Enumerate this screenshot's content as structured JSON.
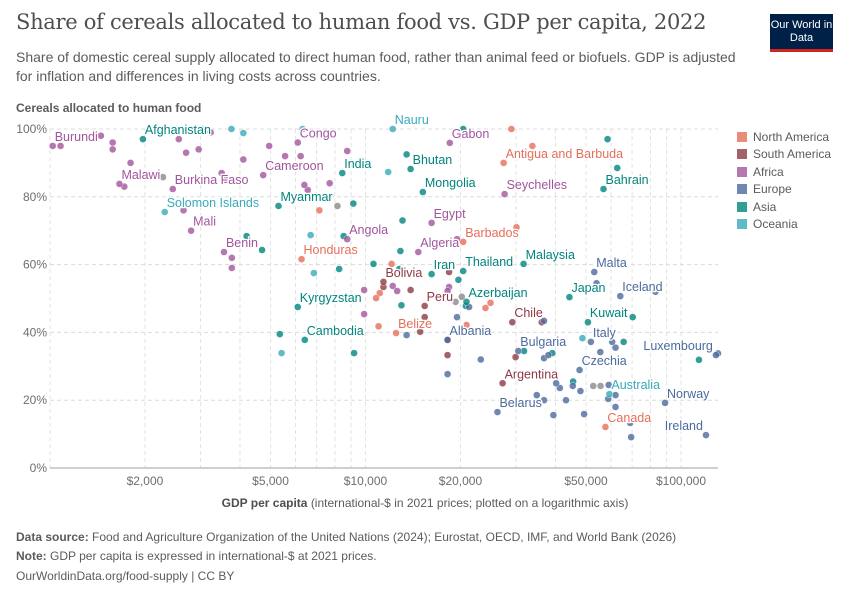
{
  "header": {
    "title": "Share of cereals allocated to human food vs. GDP per capita, 2022",
    "subtitle": "Share of domestic cereal supply allocated to direct human food, rather than animal feed or biofuels. GDP is adjusted for inflation and differences in living costs across countries.",
    "logo_text": "Our World in Data"
  },
  "footer": {
    "source_label": "Data source:",
    "source_text": "Food and Agriculture Organization of the United Nations (2024); Eurostat, OECD, IMF, and World Bank (2026)",
    "note_label": "Note:",
    "note_text": "GDP per capita is expressed in international-$ at 2021 prices.",
    "url_license": "OurWorldinData.org/food-supply | CC BY"
  },
  "chart_data": {
    "type": "scatter",
    "title": "Share of cereals allocated to human food vs. GDP per capita, 2022",
    "ylabel": "Cereals allocated to human food",
    "xlabel_bold": "GDP per capita",
    "xlabel_rest": "(international-$ in 2021 prices; plotted on a logarithmic axis)",
    "x_scale": "log",
    "xlim": [
      1000,
      131000
    ],
    "ylim": [
      0,
      100
    ],
    "x_ticks": [
      {
        "v": 2000,
        "label": "$2,000"
      },
      {
        "v": 5000,
        "label": "$5,000"
      },
      {
        "v": 10000,
        "label": "$10,000"
      },
      {
        "v": 20000,
        "label": "$20,000"
      },
      {
        "v": 50000,
        "label": "$50,000"
      },
      {
        "v": 100000,
        "label": "$100,000"
      }
    ],
    "y_ticks": [
      {
        "v": 0,
        "label": "0%"
      },
      {
        "v": 20,
        "label": "20%"
      },
      {
        "v": 40,
        "label": "40%"
      },
      {
        "v": 60,
        "label": "60%"
      },
      {
        "v": 80,
        "label": "80%"
      },
      {
        "v": 100,
        "label": "100%"
      }
    ],
    "grid": true,
    "legend_position": "right",
    "regions": [
      {
        "name": "North America",
        "color": "#E56E5A"
      },
      {
        "name": "South America",
        "color": "#8C3A44"
      },
      {
        "name": "Africa",
        "color": "#A2559C"
      },
      {
        "name": "Europe",
        "color": "#4C6A9C"
      },
      {
        "name": "Asia",
        "color": "#00847E"
      },
      {
        "name": "Oceania",
        "color": "#38AABA"
      }
    ],
    "no_region_color": "#8a8a8a",
    "points": [
      {
        "label": "Burundi",
        "region": "Africa",
        "x": 1020,
        "y": 95
      },
      {
        "label": "Afghanistan",
        "region": "Asia",
        "x": 1970,
        "y": 97
      },
      {
        "label": "Malawi",
        "region": "Africa",
        "x": 1660,
        "y": 83.8
      },
      {
        "label": "Burkina Faso",
        "region": "Africa",
        "x": 2450,
        "y": 82.3
      },
      {
        "label": "Solomon Islands",
        "region": "Oceania",
        "x": 2310,
        "y": 75.5
      },
      {
        "label": "Mali",
        "region": "Africa",
        "x": 2800,
        "y": 70
      },
      {
        "label": "Benin",
        "region": "Africa",
        "x": 3560,
        "y": 63.7
      },
      {
        "label": "Congo",
        "region": "Africa",
        "x": 6100,
        "y": 96
      },
      {
        "label": "Cameroon",
        "region": "Africa",
        "x": 4740,
        "y": 86.4
      },
      {
        "label": "Myanmar",
        "region": "Asia",
        "x": 5300,
        "y": 77.3
      },
      {
        "label": "India",
        "region": "Asia",
        "x": 8440,
        "y": 87
      },
      {
        "label": "Angola",
        "region": "Africa",
        "x": 8750,
        "y": 67.5
      },
      {
        "label": "Honduras",
        "region": "North America",
        "x": 6270,
        "y": 61.6
      },
      {
        "label": "Kyrgyzstan",
        "region": "Asia",
        "x": 6100,
        "y": 47.5
      },
      {
        "label": "Cambodia",
        "region": "Asia",
        "x": 6420,
        "y": 37.8
      },
      {
        "label": "Nauru",
        "region": "Oceania",
        "x": 12200,
        "y": 100
      },
      {
        "label": "Gabon",
        "region": "Africa",
        "x": 18500,
        "y": 95.9
      },
      {
        "label": "Antigua and Barbuda",
        "region": "North America",
        "x": 27400,
        "y": 90
      },
      {
        "label": "Bhutan",
        "region": "Asia",
        "x": 13900,
        "y": 88.2
      },
      {
        "label": "Mongolia",
        "region": "Asia",
        "x": 15200,
        "y": 81.4
      },
      {
        "label": "Seychelles",
        "region": "Africa",
        "x": 27600,
        "y": 80.8
      },
      {
        "label": "Bahrain",
        "region": "Asia",
        "x": 56800,
        "y": 82.3
      },
      {
        "label": "Egypt",
        "region": "Africa",
        "x": 16200,
        "y": 72.3
      },
      {
        "label": "Barbados",
        "region": "North America",
        "x": 20400,
        "y": 66.7
      },
      {
        "label": "Algeria",
        "region": "Africa",
        "x": 14700,
        "y": 63.7
      },
      {
        "label": "Malaysia",
        "region": "Asia",
        "x": 31700,
        "y": 60.2
      },
      {
        "label": "Thailand",
        "region": "Asia",
        "x": 20400,
        "y": 58.1
      },
      {
        "label": "Iran",
        "region": "Asia",
        "x": 16200,
        "y": 57.2
      },
      {
        "label": "Malta",
        "region": "Europe",
        "x": 53100,
        "y": 57.8
      },
      {
        "label": "Iceland",
        "region": "Europe",
        "x": 64200,
        "y": 50.7
      },
      {
        "label": "Japan",
        "region": "Asia",
        "x": 44300,
        "y": 50.4
      },
      {
        "label": "Bolivia",
        "region": "South America",
        "x": 11400,
        "y": 54.9
      },
      {
        "label": "Azerbaijan",
        "region": "Asia",
        "x": 20900,
        "y": 49
      },
      {
        "label": "Peru",
        "region": "South America",
        "x": 15400,
        "y": 47.8
      },
      {
        "label": "Chile",
        "region": "South America",
        "x": 29200,
        "y": 43
      },
      {
        "label": "Kuwait",
        "region": "Asia",
        "x": 50700,
        "y": 43
      },
      {
        "label": "Belize",
        "region": "North America",
        "x": 12500,
        "y": 39.8
      },
      {
        "label": "Albania",
        "region": "Europe",
        "x": 18200,
        "y": 37.8
      },
      {
        "label": "Italy",
        "region": "Europe",
        "x": 51800,
        "y": 37.2
      },
      {
        "label": "Bulgaria",
        "region": "Europe",
        "x": 30500,
        "y": 34.5
      },
      {
        "label": "Luxembourg",
        "region": "Europe",
        "x": 129000,
        "y": 33.3
      },
      {
        "label": "Czechia",
        "region": "Europe",
        "x": 47700,
        "y": 28.9
      },
      {
        "label": "Argentina",
        "region": "South America",
        "x": 27200,
        "y": 25
      },
      {
        "label": "Australia",
        "region": "Oceania",
        "x": 59300,
        "y": 21.8
      },
      {
        "label": "Norway",
        "region": "Europe",
        "x": 89000,
        "y": 19.2
      },
      {
        "label": "Belarus",
        "region": "Europe",
        "x": 26200,
        "y": 16.5
      },
      {
        "label": "Canada",
        "region": "North America",
        "x": 57600,
        "y": 12.1
      },
      {
        "label": "Ireland",
        "region": "Europe",
        "x": 120000,
        "y": 9.7
      },
      {
        "label": "",
        "region": "Africa",
        "x": 1080,
        "y": 95
      },
      {
        "label": "",
        "region": "Africa",
        "x": 1450,
        "y": 98
      },
      {
        "label": "",
        "region": "Africa",
        "x": 1580,
        "y": 96
      },
      {
        "label": "",
        "region": "Africa",
        "x": 1580,
        "y": 94
      },
      {
        "label": "",
        "region": "Africa",
        "x": 1800,
        "y": 90
      },
      {
        "label": "",
        "region": "Africa",
        "x": 1720,
        "y": 83
      },
      {
        "label": "",
        "region": "Africa",
        "x": 2700,
        "y": 93
      },
      {
        "label": "",
        "region": "Africa",
        "x": 2960,
        "y": 94
      },
      {
        "label": "",
        "region": "Africa",
        "x": 3230,
        "y": 99
      },
      {
        "label": "",
        "region": "Africa",
        "x": 2560,
        "y": 97
      },
      {
        "label": "",
        "region": "Africa",
        "x": 3500,
        "y": 87
      },
      {
        "label": "",
        "region": "Africa",
        "x": 3600,
        "y": 85
      },
      {
        "label": "",
        "region": "Africa",
        "x": 3770,
        "y": 62
      },
      {
        "label": "",
        "region": "Africa",
        "x": 3770,
        "y": 59
      },
      {
        "label": "",
        "region": "Africa",
        "x": 2650,
        "y": 76
      },
      {
        "label": "",
        "region": "Africa",
        "x": 4100,
        "y": 91
      },
      {
        "label": "",
        "region": "Africa",
        "x": 4950,
        "y": 95
      },
      {
        "label": "",
        "region": "Africa",
        "x": 5560,
        "y": 92
      },
      {
        "label": "",
        "region": "Africa",
        "x": 6230,
        "y": 92
      },
      {
        "label": "",
        "region": "Africa",
        "x": 6560,
        "y": 82
      },
      {
        "label": "",
        "region": "Africa",
        "x": 6400,
        "y": 83.5
      },
      {
        "label": "",
        "region": "Africa",
        "x": 7700,
        "y": 84
      },
      {
        "label": "",
        "region": "Africa",
        "x": 8750,
        "y": 93.5
      },
      {
        "label": "",
        "region": "Africa",
        "x": 12200,
        "y": 53.7
      },
      {
        "label": "",
        "region": "Africa",
        "x": 9900,
        "y": 52.5
      },
      {
        "label": "",
        "region": "Africa",
        "x": 9900,
        "y": 45.4
      },
      {
        "label": "",
        "region": "Africa",
        "x": 18400,
        "y": 53.4
      },
      {
        "label": "",
        "region": "Africa",
        "x": 18200,
        "y": 52.2
      },
      {
        "label": "",
        "region": "Africa",
        "x": 12600,
        "y": 52.2
      },
      {
        "label": "",
        "region": "Africa",
        "x": 19500,
        "y": 67.5
      },
      {
        "label": "",
        "region": "Asia",
        "x": 4700,
        "y": 64.3
      },
      {
        "label": "",
        "region": "Asia",
        "x": 4200,
        "y": 68.4
      },
      {
        "label": "",
        "region": "Asia",
        "x": 8530,
        "y": 68.4
      },
      {
        "label": "",
        "region": "Asia",
        "x": 9150,
        "y": 78
      },
      {
        "label": "",
        "region": "Asia",
        "x": 10600,
        "y": 60.2
      },
      {
        "label": "",
        "region": "Asia",
        "x": 8250,
        "y": 58.7
      },
      {
        "label": "",
        "region": "Asia",
        "x": 13100,
        "y": 73
      },
      {
        "label": "",
        "region": "Asia",
        "x": 12900,
        "y": 64
      },
      {
        "label": "",
        "region": "Asia",
        "x": 12800,
        "y": 58.7
      },
      {
        "label": "",
        "region": "Asia",
        "x": 19700,
        "y": 55.5
      },
      {
        "label": "",
        "region": "Asia",
        "x": 13000,
        "y": 48
      },
      {
        "label": "",
        "region": "Asia",
        "x": 20800,
        "y": 47.8
      },
      {
        "label": "",
        "region": "Asia",
        "x": 9200,
        "y": 33.9
      },
      {
        "label": "",
        "region": "Asia",
        "x": 5350,
        "y": 39.5
      },
      {
        "label": "",
        "region": "Asia",
        "x": 20400,
        "y": 100
      },
      {
        "label": "",
        "region": "Asia",
        "x": 13500,
        "y": 92.5
      },
      {
        "label": "",
        "region": "Asia",
        "x": 58500,
        "y": 97
      },
      {
        "label": "",
        "region": "Asia",
        "x": 62800,
        "y": 88.5
      },
      {
        "label": "",
        "region": "Asia",
        "x": 70300,
        "y": 44.5
      },
      {
        "label": "",
        "region": "Asia",
        "x": 65800,
        "y": 37.2
      },
      {
        "label": "",
        "region": "Asia",
        "x": 114000,
        "y": 31.9
      },
      {
        "label": "",
        "region": "Asia",
        "x": 39100,
        "y": 33.9
      },
      {
        "label": "",
        "region": "Asia",
        "x": 31800,
        "y": 34.5
      },
      {
        "label": "",
        "region": "Asia",
        "x": 45500,
        "y": 25.5
      },
      {
        "label": "",
        "region": "Oceania",
        "x": 3050,
        "y": 100
      },
      {
        "label": "",
        "region": "Oceania",
        "x": 3760,
        "y": 100
      },
      {
        "label": "",
        "region": "Oceania",
        "x": 4100,
        "y": 98.8
      },
      {
        "label": "",
        "region": "Oceania",
        "x": 6320,
        "y": 100
      },
      {
        "label": "",
        "region": "Oceania",
        "x": 6700,
        "y": 68.7
      },
      {
        "label": "",
        "region": "Oceania",
        "x": 6860,
        "y": 57.5
      },
      {
        "label": "",
        "region": "Oceania",
        "x": 5420,
        "y": 33.9
      },
      {
        "label": "",
        "region": "Oceania",
        "x": 11800,
        "y": 87.3
      },
      {
        "label": "",
        "region": "Oceania",
        "x": 48700,
        "y": 38.3
      },
      {
        "label": "",
        "region": "North America",
        "x": 29000,
        "y": 100
      },
      {
        "label": "",
        "region": "North America",
        "x": 33800,
        "y": 95
      },
      {
        "label": "",
        "region": "North America",
        "x": 30100,
        "y": 71
      },
      {
        "label": "",
        "region": "North America",
        "x": 7140,
        "y": 76
      },
      {
        "label": "",
        "region": "North America",
        "x": 11100,
        "y": 51.6
      },
      {
        "label": "",
        "region": "North America",
        "x": 10800,
        "y": 50.1
      },
      {
        "label": "",
        "region": "North America",
        "x": 12100,
        "y": 60.2
      },
      {
        "label": "",
        "region": "North America",
        "x": 11000,
        "y": 41.8
      },
      {
        "label": "",
        "region": "North America",
        "x": 20900,
        "y": 42.2
      },
      {
        "label": "",
        "region": "North America",
        "x": 24000,
        "y": 47.2
      },
      {
        "label": "",
        "region": "North America",
        "x": 24900,
        "y": 48.7
      },
      {
        "label": "",
        "region": "South America",
        "x": 11400,
        "y": 53.4
      },
      {
        "label": "",
        "region": "South America",
        "x": 13900,
        "y": 52.5
      },
      {
        "label": "",
        "region": "South America",
        "x": 18400,
        "y": 57.8
      },
      {
        "label": "",
        "region": "South America",
        "x": 15400,
        "y": 44.5
      },
      {
        "label": "",
        "region": "South America",
        "x": 14900,
        "y": 40.2
      },
      {
        "label": "",
        "region": "South America",
        "x": 18200,
        "y": 33.3
      },
      {
        "label": "",
        "region": "South America",
        "x": 18200,
        "y": 37.7
      },
      {
        "label": "",
        "region": "South America",
        "x": 29900,
        "y": 32.7
      },
      {
        "label": "",
        "region": "South America",
        "x": 36200,
        "y": 43
      },
      {
        "label": "",
        "region": "Europe",
        "x": 58800,
        "y": 20.4
      },
      {
        "label": "",
        "region": "Europe",
        "x": 62000,
        "y": 21.5
      },
      {
        "label": "",
        "region": "Europe",
        "x": 69000,
        "y": 13.3
      },
      {
        "label": "",
        "region": "Europe",
        "x": 69500,
        "y": 9.1
      },
      {
        "label": "",
        "region": "Europe",
        "x": 48000,
        "y": 22.7
      },
      {
        "label": "",
        "region": "Europe",
        "x": 45400,
        "y": 24.2
      },
      {
        "label": "",
        "region": "Europe",
        "x": 43200,
        "y": 20
      },
      {
        "label": "",
        "region": "Europe",
        "x": 39400,
        "y": 15.6
      },
      {
        "label": "",
        "region": "Europe",
        "x": 36800,
        "y": 20
      },
      {
        "label": "",
        "region": "Europe",
        "x": 34900,
        "y": 21.5
      },
      {
        "label": "",
        "region": "Europe",
        "x": 41300,
        "y": 23.6
      },
      {
        "label": "",
        "region": "Europe",
        "x": 40200,
        "y": 25
      },
      {
        "label": "",
        "region": "Europe",
        "x": 36800,
        "y": 32.4
      },
      {
        "label": "",
        "region": "Europe",
        "x": 38000,
        "y": 33.3
      },
      {
        "label": "",
        "region": "Europe",
        "x": 23200,
        "y": 32
      },
      {
        "label": "",
        "region": "Europe",
        "x": 18200,
        "y": 27.7
      },
      {
        "label": "",
        "region": "Europe",
        "x": 13500,
        "y": 39.2
      },
      {
        "label": "",
        "region": "Europe",
        "x": 19500,
        "y": 44.5
      },
      {
        "label": "",
        "region": "Europe",
        "x": 21300,
        "y": 47.5
      },
      {
        "label": "",
        "region": "Europe",
        "x": 54000,
        "y": 54.5
      },
      {
        "label": "",
        "region": "Europe",
        "x": 55500,
        "y": 34.2
      },
      {
        "label": "",
        "region": "Europe",
        "x": 62000,
        "y": 35.5
      },
      {
        "label": "",
        "region": "Europe",
        "x": 60500,
        "y": 37.2
      },
      {
        "label": "",
        "region": "Europe",
        "x": 49300,
        "y": 15.9
      },
      {
        "label": "",
        "region": "Europe",
        "x": 83000,
        "y": 52
      },
      {
        "label": "",
        "region": "Europe",
        "x": 36800,
        "y": 43.4
      },
      {
        "label": "",
        "region": "Europe",
        "x": 131000,
        "y": 33.8
      },
      {
        "label": "",
        "region": "Europe",
        "x": 62000,
        "y": 18
      },
      {
        "label": "",
        "region": "Europe",
        "x": 59000,
        "y": 24.5
      },
      {
        "label": "",
        "region": "",
        "x": 2280,
        "y": 85.8
      },
      {
        "label": "",
        "region": "",
        "x": 8150,
        "y": 77.3
      },
      {
        "label": "",
        "region": "",
        "x": 19300,
        "y": 49
      },
      {
        "label": "",
        "region": "",
        "x": 20200,
        "y": 50.5
      },
      {
        "label": "",
        "region": "",
        "x": 52700,
        "y": 24.2
      },
      {
        "label": "",
        "region": "",
        "x": 55600,
        "y": 24.2
      }
    ]
  }
}
